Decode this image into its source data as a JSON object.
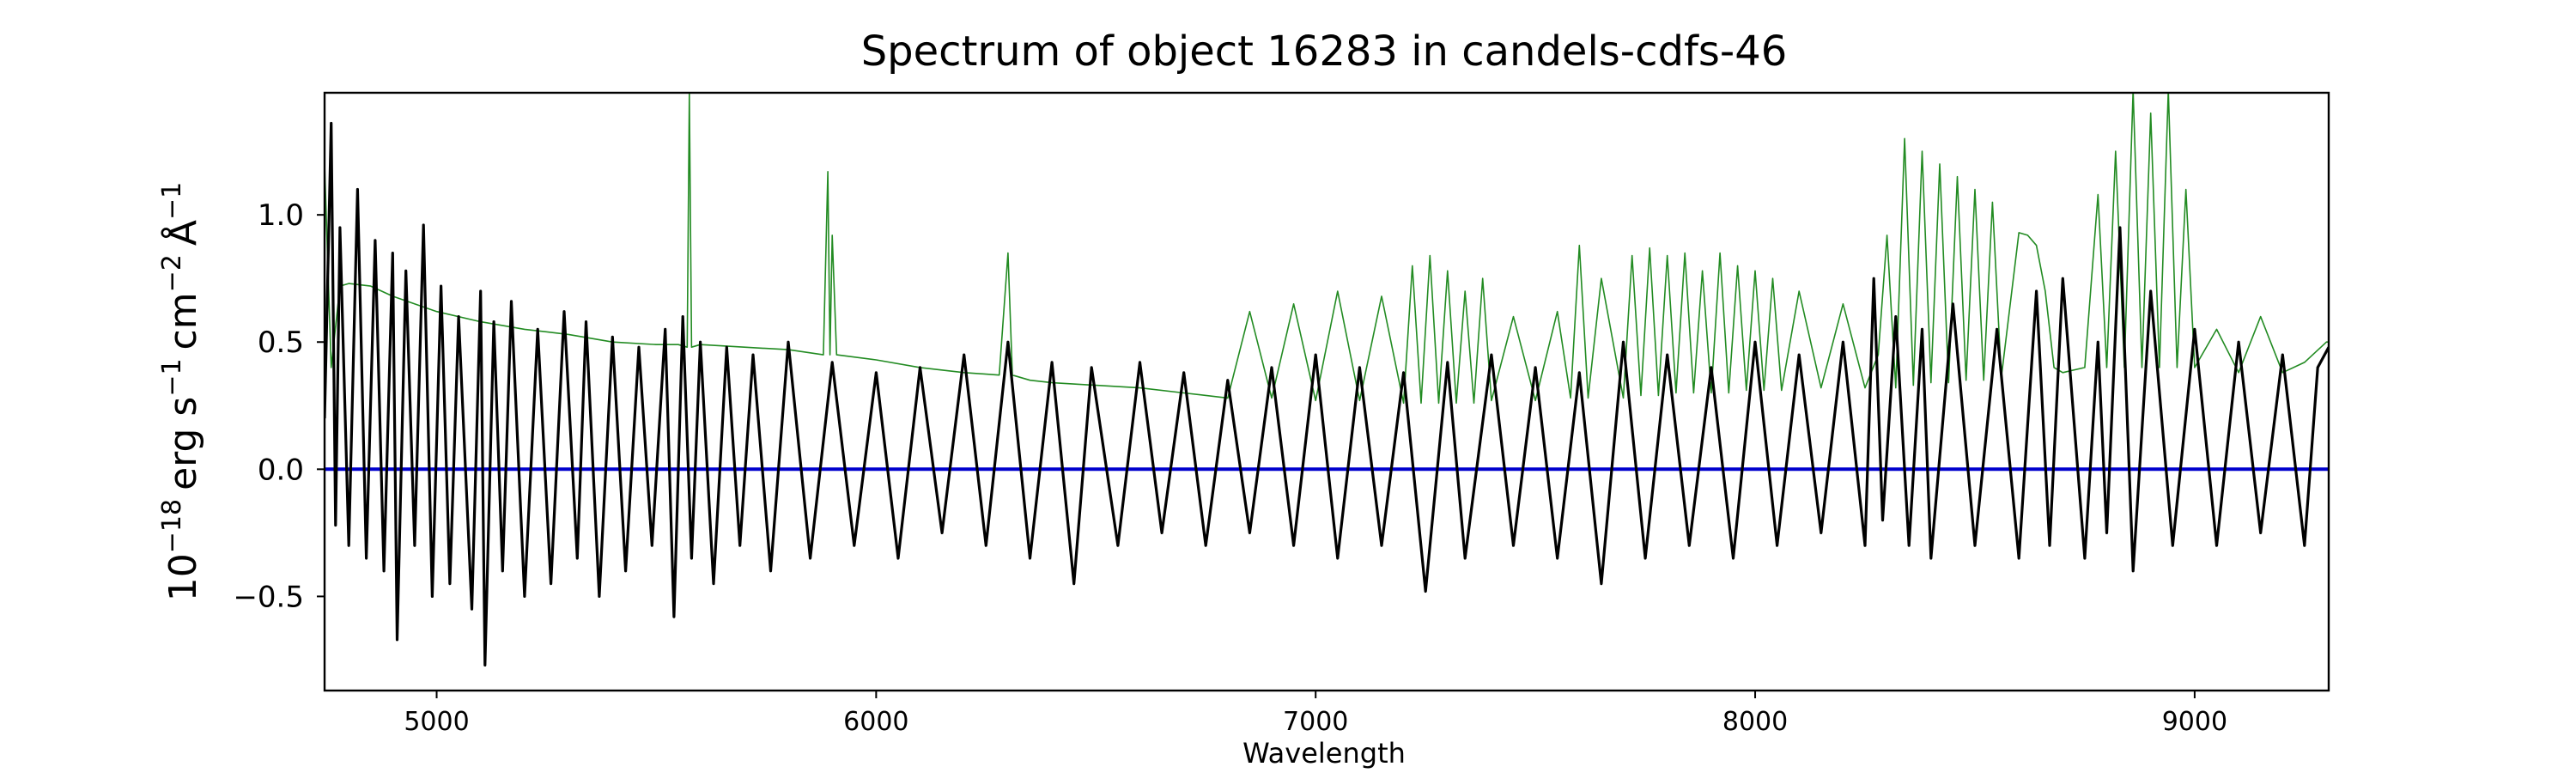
{
  "chart_data": {
    "type": "line",
    "title": "Spectrum of object 16283 in candels-cdfs-46",
    "xlabel": "Wavelength",
    "ylabel": {
      "base": "10",
      "base_exp": "−18",
      "unit1": "erg s",
      "unit1_exp": "−1",
      "unit2": "cm",
      "unit2_exp": "−2",
      "unit3": "Å",
      "unit3_exp": "−1"
    },
    "xlim": [
      4745,
      9305
    ],
    "ylim": [
      -0.87,
      1.48
    ],
    "xticks": [
      5000,
      6000,
      7000,
      8000,
      9000
    ],
    "xtick_labels": [
      "5000",
      "6000",
      "7000",
      "8000",
      "9000"
    ],
    "yticks": [
      -0.5,
      0.0,
      0.5,
      1.0
    ],
    "ytick_labels": [
      "−0.5",
      "0.0",
      "0.5",
      "1.0"
    ],
    "grid": false,
    "legend": "none",
    "series": [
      {
        "role": "flux",
        "color": "#000000",
        "x": [
          4745,
          4760,
          4770,
          4780,
          4800,
          4820,
          4840,
          4860,
          4880,
          4900,
          4910,
          4930,
          4950,
          4970,
          4990,
          5010,
          5030,
          5050,
          5080,
          5100,
          5110,
          5130,
          5150,
          5170,
          5200,
          5230,
          5260,
          5290,
          5320,
          5340,
          5370,
          5400,
          5430,
          5460,
          5490,
          5520,
          5540,
          5560,
          5580,
          5600,
          5630,
          5660,
          5690,
          5720,
          5760,
          5800,
          5850,
          5900,
          5950,
          6000,
          6050,
          6100,
          6150,
          6200,
          6250,
          6300,
          6350,
          6400,
          6450,
          6490,
          6550,
          6600,
          6650,
          6700,
          6750,
          6800,
          6850,
          6900,
          6950,
          7000,
          7050,
          7100,
          7150,
          7200,
          7250,
          7300,
          7340,
          7400,
          7450,
          7500,
          7550,
          7600,
          7650,
          7700,
          7750,
          7800,
          7850,
          7900,
          7950,
          8000,
          8050,
          8100,
          8150,
          8200,
          8250,
          8270,
          8290,
          8320,
          8350,
          8380,
          8400,
          8450,
          8500,
          8550,
          8600,
          8640,
          8670,
          8700,
          8750,
          8780,
          8800,
          8830,
          8860,
          8900,
          8950,
          9000,
          9050,
          9100,
          9150,
          9200,
          9250,
          9280,
          9305
        ],
        "values": [
          0.2,
          1.36,
          -0.22,
          0.95,
          -0.3,
          1.1,
          -0.35,
          0.9,
          -0.4,
          0.85,
          -0.67,
          0.78,
          -0.3,
          0.96,
          -0.5,
          0.72,
          -0.45,
          0.6,
          -0.55,
          0.7,
          -0.77,
          0.58,
          -0.4,
          0.66,
          -0.5,
          0.55,
          -0.45,
          0.62,
          -0.35,
          0.58,
          -0.5,
          0.52,
          -0.4,
          0.48,
          -0.3,
          0.55,
          -0.58,
          0.6,
          -0.35,
          0.5,
          -0.45,
          0.48,
          -0.3,
          0.45,
          -0.4,
          0.5,
          -0.35,
          0.42,
          -0.3,
          0.38,
          -0.35,
          0.4,
          -0.25,
          0.45,
          -0.3,
          0.5,
          -0.35,
          0.42,
          -0.45,
          0.4,
          -0.3,
          0.42,
          -0.25,
          0.38,
          -0.3,
          0.35,
          -0.25,
          0.4,
          -0.3,
          0.45,
          -0.35,
          0.4,
          -0.3,
          0.38,
          -0.48,
          0.42,
          -0.35,
          0.45,
          -0.3,
          0.4,
          -0.35,
          0.38,
          -0.45,
          0.5,
          -0.35,
          0.45,
          -0.3,
          0.4,
          -0.35,
          0.5,
          -0.3,
          0.45,
          -0.25,
          0.5,
          -0.3,
          0.75,
          -0.2,
          0.6,
          -0.3,
          0.55,
          -0.35,
          0.65,
          -0.3,
          0.55,
          -0.35,
          0.7,
          -0.3,
          0.75,
          -0.35,
          0.5,
          -0.25,
          0.95,
          -0.4,
          0.7,
          -0.3,
          0.55,
          -0.3,
          0.5,
          -0.25,
          0.45,
          -0.3,
          0.4,
          0.48
        ]
      },
      {
        "role": "error",
        "color": "#228b22",
        "x": [
          4745,
          4760,
          4780,
          4800,
          4850,
          4900,
          5000,
          5100,
          5200,
          5300,
          5400,
          5500,
          5550,
          5570,
          5575,
          5580,
          5600,
          5700,
          5800,
          5880,
          5890,
          5895,
          5900,
          5910,
          6000,
          6100,
          6200,
          6280,
          6300,
          6310,
          6350,
          6400,
          6500,
          6600,
          6700,
          6800,
          6850,
          6900,
          6950,
          7000,
          7050,
          7100,
          7150,
          7200,
          7220,
          7240,
          7260,
          7280,
          7300,
          7320,
          7340,
          7360,
          7380,
          7400,
          7450,
          7500,
          7550,
          7580,
          7600,
          7620,
          7650,
          7700,
          7720,
          7740,
          7760,
          7780,
          7800,
          7820,
          7840,
          7860,
          7880,
          7900,
          7920,
          7940,
          7960,
          7980,
          8000,
          8020,
          8040,
          8060,
          8100,
          8150,
          8200,
          8250,
          8280,
          8300,
          8320,
          8340,
          8360,
          8380,
          8400,
          8420,
          8440,
          8460,
          8480,
          8500,
          8520,
          8540,
          8560,
          8600,
          8620,
          8640,
          8660,
          8680,
          8700,
          8750,
          8780,
          8800,
          8820,
          8840,
          8860,
          8880,
          8900,
          8920,
          8940,
          8960,
          8980,
          9000,
          9050,
          9100,
          9150,
          9200,
          9250,
          9300,
          9305
        ],
        "values": [
          1.2,
          0.4,
          0.72,
          0.73,
          0.72,
          0.68,
          0.62,
          0.58,
          0.55,
          0.53,
          0.5,
          0.49,
          0.49,
          0.48,
          1.48,
          0.48,
          0.49,
          0.48,
          0.47,
          0.45,
          1.17,
          0.45,
          0.92,
          0.45,
          0.43,
          0.4,
          0.38,
          0.37,
          0.85,
          0.37,
          0.35,
          0.34,
          0.33,
          0.32,
          0.3,
          0.28,
          0.62,
          0.28,
          0.65,
          0.27,
          0.7,
          0.27,
          0.68,
          0.26,
          0.8,
          0.26,
          0.84,
          0.26,
          0.78,
          0.26,
          0.7,
          0.26,
          0.75,
          0.27,
          0.6,
          0.27,
          0.62,
          0.28,
          0.88,
          0.28,
          0.75,
          0.28,
          0.84,
          0.29,
          0.87,
          0.29,
          0.84,
          0.3,
          0.85,
          0.3,
          0.78,
          0.3,
          0.85,
          0.3,
          0.8,
          0.31,
          0.78,
          0.31,
          0.75,
          0.31,
          0.7,
          0.32,
          0.65,
          0.32,
          0.45,
          0.92,
          0.32,
          1.3,
          0.33,
          1.25,
          0.34,
          1.2,
          0.34,
          1.15,
          0.35,
          1.1,
          0.35,
          1.05,
          0.36,
          0.93,
          0.92,
          0.88,
          0.7,
          0.4,
          0.38,
          0.4,
          1.08,
          0.4,
          1.25,
          0.4,
          1.49,
          0.4,
          1.4,
          0.4,
          1.49,
          0.4,
          1.1,
          0.4,
          0.55,
          0.38,
          0.6,
          0.38,
          0.42,
          0.5,
          0.5
        ]
      },
      {
        "role": "zero",
        "color": "#0000cd",
        "x": [
          4745,
          9305
        ],
        "values": [
          0,
          0
        ]
      }
    ]
  }
}
